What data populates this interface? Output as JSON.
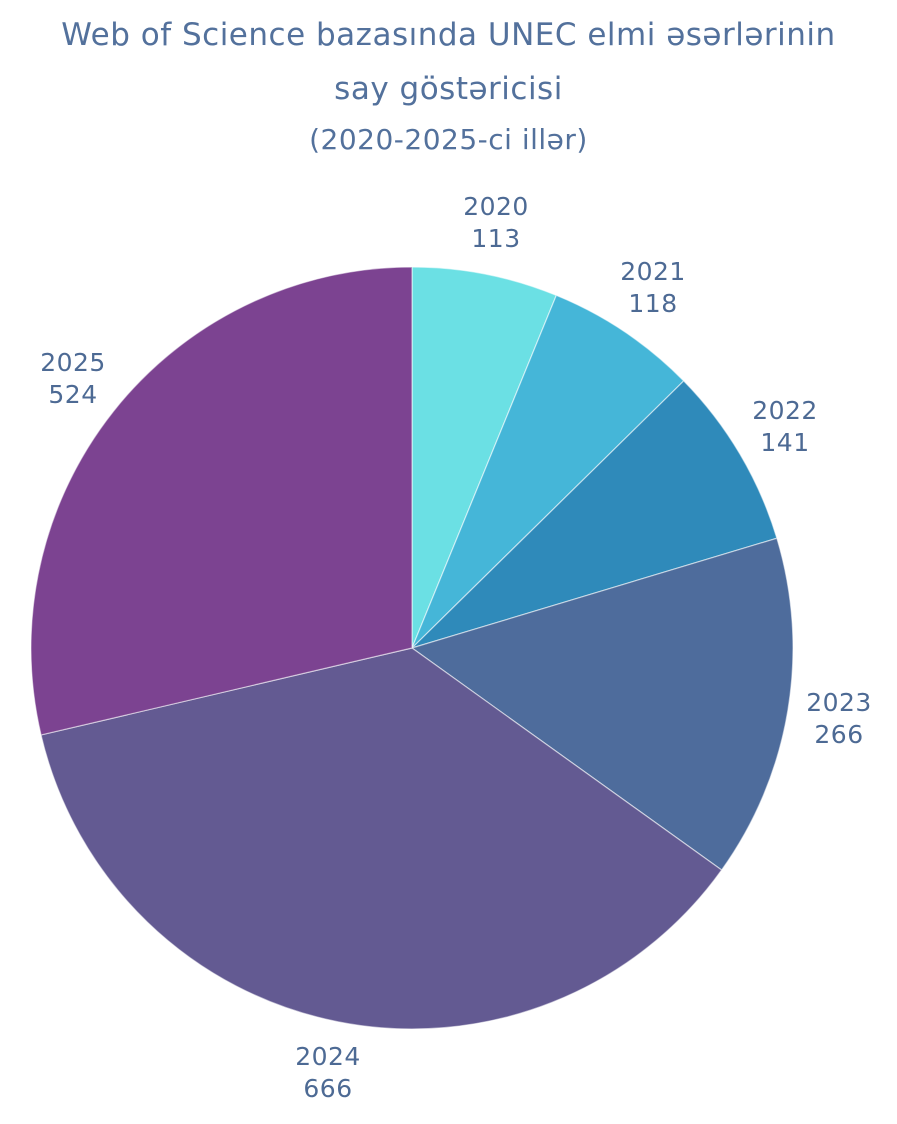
{
  "header": {
    "title": "Web of Science bazasında UNEC elmi əsərlərinin say göstəricisi",
    "subtitle": "(2020-2025-ci illər)"
  },
  "colors": {
    "title_text": "#53719c",
    "label_text": "#4d6a94",
    "background": "#ffffff"
  },
  "chart_data": {
    "type": "pie",
    "title": "Web of Science bazasında UNEC elmi əsərlərinin say göstəricisi",
    "subtitle": "(2020-2025-ci illər)",
    "categories": [
      "2020",
      "2021",
      "2022",
      "2023",
      "2024",
      "2025"
    ],
    "values": [
      113,
      118,
      141,
      266,
      666,
      524
    ],
    "total": 1828,
    "colors": [
      "#6be0e4",
      "#45b6d8",
      "#2f8aba",
      "#4e6c9c",
      "#635a92",
      "#7c4391"
    ],
    "slice_border_color": "rgba(255,255,255,0.55)",
    "start_angle_deg": 0,
    "direction": "clockwise",
    "labels_outside": true,
    "legend": "none"
  }
}
